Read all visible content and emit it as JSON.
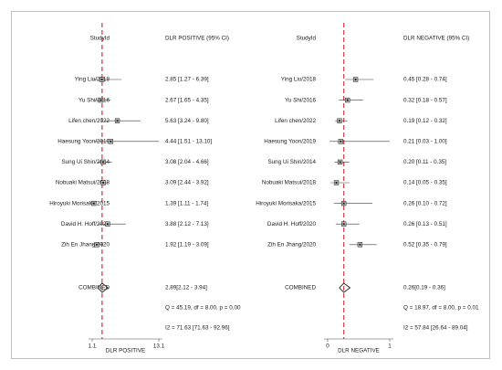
{
  "chart_data": [
    {
      "type": "forest",
      "header_label": "StudyId",
      "header_ci": "DLR POSITIVE (95% CI)",
      "xlabel": "DLR POSITIVE",
      "xticks": [
        1.1,
        13.1
      ],
      "xtick_labels": [
        "1.1",
        "13.1"
      ],
      "xlim": [
        1.1,
        13.1
      ],
      "reference_line": 2.89,
      "studies": [
        {
          "name": "Ying Liu/2018",
          "est": 2.85,
          "lo": 1.27,
          "hi": 6.39,
          "ci_text": "2.85 [1.27 - 6.39]"
        },
        {
          "name": "Yu Shi/2016",
          "est": 2.67,
          "lo": 1.65,
          "hi": 4.35,
          "ci_text": "2.67 [1.65 - 4.35]"
        },
        {
          "name": "Lifen chen/2022",
          "est": 5.63,
          "lo": 3.24,
          "hi": 9.8,
          "ci_text": "5.63 [3.24 - 9.80]"
        },
        {
          "name": "Haesung Yoon/2019",
          "est": 4.44,
          "lo": 1.51,
          "hi": 13.1,
          "ci_text": "4.44 [1.51 - 13.10]"
        },
        {
          "name": "Sung Ui Shin/2014",
          "est": 3.08,
          "lo": 2.04,
          "hi": 4.66,
          "ci_text": "3.08 [2.04 - 4.66]"
        },
        {
          "name": "Nobuaki Matsui/2018",
          "est": 3.09,
          "lo": 2.44,
          "hi": 3.92,
          "ci_text": "3.09 [2.44 - 3.92]"
        },
        {
          "name": "Hiroyuki Morisaka/2015",
          "est": 1.39,
          "lo": 1.11,
          "hi": 1.74,
          "ci_text": "1.39 [1.11 - 1.74]"
        },
        {
          "name": "David H. Hoff/2020",
          "est": 3.88,
          "lo": 2.12,
          "hi": 7.13,
          "ci_text": "3.88 [2.12 - 7.13]"
        },
        {
          "name": "Zih En Jhang/2020",
          "est": 1.92,
          "lo": 1.19,
          "hi": 3.09,
          "ci_text": "1.92 [1.19 - 3.09]"
        }
      ],
      "combined": {
        "label": "COMBINED",
        "est": 2.89,
        "lo": 2.12,
        "hi": 3.94,
        "ci_text": "2.89[2.12 - 3.94]"
      },
      "stats_q": "Q = 45.19, df = 8.00, p = 0.00",
      "stats_i2": "I2 = 71.63 [71.63 - 92.96]"
    },
    {
      "type": "forest",
      "header_label": "StudyId",
      "header_ci": "DLR NEGATIVE (95% CI)",
      "xlabel": "DLR NEGATIVE",
      "xticks": [
        0,
        1
      ],
      "xtick_labels": [
        "0",
        "1"
      ],
      "xlim": [
        0,
        1
      ],
      "reference_line": 0.26,
      "studies": [
        {
          "name": "Ying Liu/2018",
          "est": 0.45,
          "lo": 0.28,
          "hi": 0.74,
          "ci_text": "0.45 [0.28 - 0.74]"
        },
        {
          "name": "Yu Shi/2016",
          "est": 0.32,
          "lo": 0.18,
          "hi": 0.57,
          "ci_text": "0.32 [0.18 - 0.57]"
        },
        {
          "name": "Lifen chen/2022",
          "est": 0.19,
          "lo": 0.12,
          "hi": 0.32,
          "ci_text": "0.19 [0.12 - 0.32]"
        },
        {
          "name": "Haesung Yoon/2019",
          "est": 0.21,
          "lo": 0.03,
          "hi": 1.0,
          "ci_text": "0.21 [0.03 - 1.00]"
        },
        {
          "name": "Sung Ui Shin/2014",
          "est": 0.2,
          "lo": 0.11,
          "hi": 0.35,
          "ci_text": "0.20 [0.11 - 0.35]"
        },
        {
          "name": "Nobuaki Matsui/2018",
          "est": 0.14,
          "lo": 0.05,
          "hi": 0.35,
          "ci_text": "0.14 [0.05 - 0.35]"
        },
        {
          "name": "Hiroyuki Morisaka/2015",
          "est": 0.26,
          "lo": 0.1,
          "hi": 0.72,
          "ci_text": "0.26 [0.10 - 0.72]"
        },
        {
          "name": "David H. Hoff/2020",
          "est": 0.26,
          "lo": 0.13,
          "hi": 0.51,
          "ci_text": "0.26 [0.13 - 0.51]"
        },
        {
          "name": "Zih En Jhang/2020",
          "est": 0.52,
          "lo": 0.35,
          "hi": 0.79,
          "ci_text": "0.52 [0.35 - 0.79]"
        }
      ],
      "combined": {
        "label": "COMBINED",
        "est": 0.26,
        "lo": 0.19,
        "hi": 0.36,
        "ci_text": "0.26[0.19 - 0.36]"
      },
      "stats_q": "Q = 18.97, df = 8.00, p = 0.01",
      "stats_i2": "I2 = 57.84 [26.64 - 89.04]"
    }
  ],
  "colors": {
    "reference_line": "#d9232d",
    "marker": "#1a1a1a",
    "ci_line": "#3a3a3a",
    "frame": "#bfbfbf",
    "axis": "#4d4d4d"
  }
}
